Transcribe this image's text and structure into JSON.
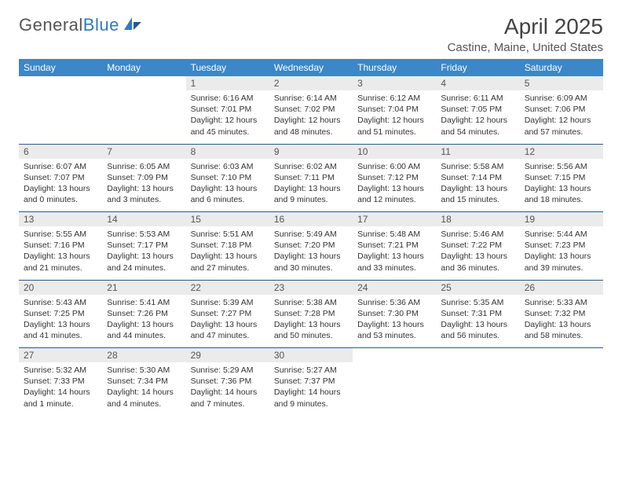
{
  "brand": {
    "part1": "General",
    "part2": "Blue"
  },
  "title": "April 2025",
  "location": "Castine, Maine, United States",
  "colors": {
    "header_bg": "#3b87c8",
    "header_text": "#ffffff",
    "daynum_bg": "#ebebeb",
    "row_border": "#2a5a8a",
    "body_text": "#333333",
    "title_text": "#444444"
  },
  "day_headers": [
    "Sunday",
    "Monday",
    "Tuesday",
    "Wednesday",
    "Thursday",
    "Friday",
    "Saturday"
  ],
  "weeks": [
    {
      "nums": [
        "",
        "",
        "1",
        "2",
        "3",
        "4",
        "5"
      ],
      "cells": [
        null,
        null,
        {
          "sr": "Sunrise: 6:16 AM",
          "ss": "Sunset: 7:01 PM",
          "dl": "Daylight: 12 hours and 45 minutes."
        },
        {
          "sr": "Sunrise: 6:14 AM",
          "ss": "Sunset: 7:02 PM",
          "dl": "Daylight: 12 hours and 48 minutes."
        },
        {
          "sr": "Sunrise: 6:12 AM",
          "ss": "Sunset: 7:04 PM",
          "dl": "Daylight: 12 hours and 51 minutes."
        },
        {
          "sr": "Sunrise: 6:11 AM",
          "ss": "Sunset: 7:05 PM",
          "dl": "Daylight: 12 hours and 54 minutes."
        },
        {
          "sr": "Sunrise: 6:09 AM",
          "ss": "Sunset: 7:06 PM",
          "dl": "Daylight: 12 hours and 57 minutes."
        }
      ]
    },
    {
      "nums": [
        "6",
        "7",
        "8",
        "9",
        "10",
        "11",
        "12"
      ],
      "cells": [
        {
          "sr": "Sunrise: 6:07 AM",
          "ss": "Sunset: 7:07 PM",
          "dl": "Daylight: 13 hours and 0 minutes."
        },
        {
          "sr": "Sunrise: 6:05 AM",
          "ss": "Sunset: 7:09 PM",
          "dl": "Daylight: 13 hours and 3 minutes."
        },
        {
          "sr": "Sunrise: 6:03 AM",
          "ss": "Sunset: 7:10 PM",
          "dl": "Daylight: 13 hours and 6 minutes."
        },
        {
          "sr": "Sunrise: 6:02 AM",
          "ss": "Sunset: 7:11 PM",
          "dl": "Daylight: 13 hours and 9 minutes."
        },
        {
          "sr": "Sunrise: 6:00 AM",
          "ss": "Sunset: 7:12 PM",
          "dl": "Daylight: 13 hours and 12 minutes."
        },
        {
          "sr": "Sunrise: 5:58 AM",
          "ss": "Sunset: 7:14 PM",
          "dl": "Daylight: 13 hours and 15 minutes."
        },
        {
          "sr": "Sunrise: 5:56 AM",
          "ss": "Sunset: 7:15 PM",
          "dl": "Daylight: 13 hours and 18 minutes."
        }
      ]
    },
    {
      "nums": [
        "13",
        "14",
        "15",
        "16",
        "17",
        "18",
        "19"
      ],
      "cells": [
        {
          "sr": "Sunrise: 5:55 AM",
          "ss": "Sunset: 7:16 PM",
          "dl": "Daylight: 13 hours and 21 minutes."
        },
        {
          "sr": "Sunrise: 5:53 AM",
          "ss": "Sunset: 7:17 PM",
          "dl": "Daylight: 13 hours and 24 minutes."
        },
        {
          "sr": "Sunrise: 5:51 AM",
          "ss": "Sunset: 7:18 PM",
          "dl": "Daylight: 13 hours and 27 minutes."
        },
        {
          "sr": "Sunrise: 5:49 AM",
          "ss": "Sunset: 7:20 PM",
          "dl": "Daylight: 13 hours and 30 minutes."
        },
        {
          "sr": "Sunrise: 5:48 AM",
          "ss": "Sunset: 7:21 PM",
          "dl": "Daylight: 13 hours and 33 minutes."
        },
        {
          "sr": "Sunrise: 5:46 AM",
          "ss": "Sunset: 7:22 PM",
          "dl": "Daylight: 13 hours and 36 minutes."
        },
        {
          "sr": "Sunrise: 5:44 AM",
          "ss": "Sunset: 7:23 PM",
          "dl": "Daylight: 13 hours and 39 minutes."
        }
      ]
    },
    {
      "nums": [
        "20",
        "21",
        "22",
        "23",
        "24",
        "25",
        "26"
      ],
      "cells": [
        {
          "sr": "Sunrise: 5:43 AM",
          "ss": "Sunset: 7:25 PM",
          "dl": "Daylight: 13 hours and 41 minutes."
        },
        {
          "sr": "Sunrise: 5:41 AM",
          "ss": "Sunset: 7:26 PM",
          "dl": "Daylight: 13 hours and 44 minutes."
        },
        {
          "sr": "Sunrise: 5:39 AM",
          "ss": "Sunset: 7:27 PM",
          "dl": "Daylight: 13 hours and 47 minutes."
        },
        {
          "sr": "Sunrise: 5:38 AM",
          "ss": "Sunset: 7:28 PM",
          "dl": "Daylight: 13 hours and 50 minutes."
        },
        {
          "sr": "Sunrise: 5:36 AM",
          "ss": "Sunset: 7:30 PM",
          "dl": "Daylight: 13 hours and 53 minutes."
        },
        {
          "sr": "Sunrise: 5:35 AM",
          "ss": "Sunset: 7:31 PM",
          "dl": "Daylight: 13 hours and 56 minutes."
        },
        {
          "sr": "Sunrise: 5:33 AM",
          "ss": "Sunset: 7:32 PM",
          "dl": "Daylight: 13 hours and 58 minutes."
        }
      ]
    },
    {
      "nums": [
        "27",
        "28",
        "29",
        "30",
        "",
        "",
        ""
      ],
      "cells": [
        {
          "sr": "Sunrise: 5:32 AM",
          "ss": "Sunset: 7:33 PM",
          "dl": "Daylight: 14 hours and 1 minute."
        },
        {
          "sr": "Sunrise: 5:30 AM",
          "ss": "Sunset: 7:34 PM",
          "dl": "Daylight: 14 hours and 4 minutes."
        },
        {
          "sr": "Sunrise: 5:29 AM",
          "ss": "Sunset: 7:36 PM",
          "dl": "Daylight: 14 hours and 7 minutes."
        },
        {
          "sr": "Sunrise: 5:27 AM",
          "ss": "Sunset: 7:37 PM",
          "dl": "Daylight: 14 hours and 9 minutes."
        },
        null,
        null,
        null
      ]
    }
  ]
}
